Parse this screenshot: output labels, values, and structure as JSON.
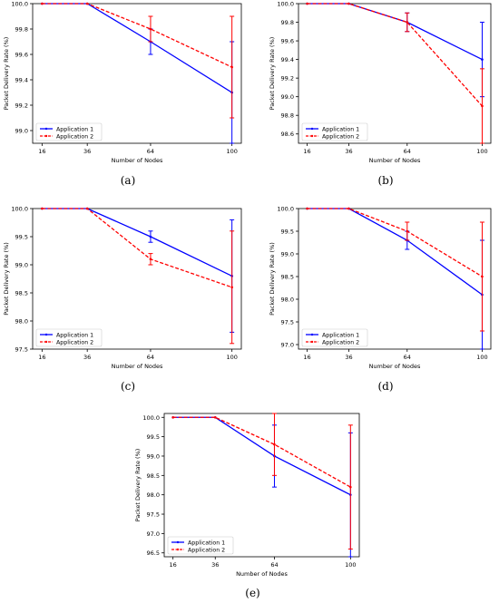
{
  "chart_data": [
    {
      "type": "line",
      "caption": "(a)",
      "xlabel": "Number of Nodes",
      "ylabel": "Packet Delivery Rate (%)",
      "categories": [
        "16",
        "36",
        "64",
        "100"
      ],
      "yticks": [
        "100.0",
        "99.8",
        "99.6",
        "99.4",
        "99.2",
        "99.0"
      ],
      "ylim": [
        98.9,
        100.0
      ],
      "grid": false,
      "legend": "bottom-left",
      "series": [
        {
          "name": "Application 1",
          "color": "#0000ff",
          "style": "solid",
          "values": [
            100.0,
            100.0,
            99.7,
            99.3
          ],
          "err_low": [
            100.0,
            100.0,
            99.6,
            98.9
          ],
          "err_high": [
            100.0,
            100.0,
            99.8,
            99.7
          ]
        },
        {
          "name": "Application 2",
          "color": "#ff0000",
          "style": "dashed",
          "values": [
            100.0,
            100.0,
            99.8,
            99.5
          ],
          "err_low": [
            100.0,
            100.0,
            99.7,
            99.1
          ],
          "err_high": [
            100.0,
            100.0,
            99.9,
            99.9
          ]
        }
      ]
    },
    {
      "type": "line",
      "caption": "(b)",
      "xlabel": "Number of Nodes",
      "ylabel": "Packet Delivery Rate (%)",
      "categories": [
        "16",
        "36",
        "64",
        "100"
      ],
      "yticks": [
        "100.0",
        "99.8",
        "99.6",
        "99.4",
        "99.2",
        "99.0",
        "98.8",
        "98.6"
      ],
      "ylim": [
        98.5,
        100.0
      ],
      "grid": false,
      "legend": "bottom-left",
      "series": [
        {
          "name": "Application 1",
          "color": "#0000ff",
          "style": "solid",
          "values": [
            100.0,
            100.0,
            99.8,
            99.4
          ],
          "err_low": [
            100.0,
            100.0,
            99.7,
            99.0
          ],
          "err_high": [
            100.0,
            100.0,
            99.9,
            99.8
          ]
        },
        {
          "name": "Application 2",
          "color": "#ff0000",
          "style": "dashed",
          "values": [
            100.0,
            100.0,
            99.8,
            98.9
          ],
          "err_low": [
            100.0,
            100.0,
            99.7,
            98.5
          ],
          "err_high": [
            100.0,
            100.0,
            99.9,
            99.3
          ]
        }
      ]
    },
    {
      "type": "line",
      "caption": "(c)",
      "xlabel": "Number of Nodes",
      "ylabel": "Packet Delivery Rate (%)",
      "categories": [
        "16",
        "36",
        "64",
        "100"
      ],
      "yticks": [
        "100.0",
        "99.5",
        "99.0",
        "98.5",
        "98.0",
        "97.5"
      ],
      "ylim": [
        97.5,
        100.0
      ],
      "grid": false,
      "legend": "bottom-left",
      "series": [
        {
          "name": "Application 1",
          "color": "#0000ff",
          "style": "solid",
          "values": [
            100.0,
            100.0,
            99.5,
            98.8
          ],
          "err_low": [
            100.0,
            100.0,
            99.4,
            97.8
          ],
          "err_high": [
            100.0,
            100.0,
            99.6,
            99.8
          ]
        },
        {
          "name": "Application 2",
          "color": "#ff0000",
          "style": "dashed",
          "values": [
            100.0,
            100.0,
            99.1,
            98.6
          ],
          "err_low": [
            100.0,
            100.0,
            99.0,
            97.6
          ],
          "err_high": [
            100.0,
            100.0,
            99.2,
            99.6
          ]
        }
      ]
    },
    {
      "type": "line",
      "caption": "(d)",
      "xlabel": "Number of Nodes",
      "ylabel": "Packet Delivery Rate (%)",
      "categories": [
        "16",
        "36",
        "64",
        "100"
      ],
      "yticks": [
        "100.0",
        "99.5",
        "99.0",
        "98.5",
        "98.0",
        "97.5",
        "97.0"
      ],
      "ylim": [
        96.9,
        100.0
      ],
      "grid": false,
      "legend": "bottom-left",
      "series": [
        {
          "name": "Application 1",
          "color": "#0000ff",
          "style": "solid",
          "values": [
            100.0,
            100.0,
            99.3,
            98.1
          ],
          "err_low": [
            100.0,
            100.0,
            99.1,
            96.9
          ],
          "err_high": [
            100.0,
            100.0,
            99.5,
            99.3
          ]
        },
        {
          "name": "Application 2",
          "color": "#ff0000",
          "style": "dashed",
          "values": [
            100.0,
            100.0,
            99.5,
            98.5
          ],
          "err_low": [
            100.0,
            100.0,
            99.3,
            97.3
          ],
          "err_high": [
            100.0,
            100.0,
            99.7,
            99.7
          ]
        }
      ]
    },
    {
      "type": "line",
      "caption": "(e)",
      "xlabel": "Number of Nodes",
      "ylabel": "Packet Delivery Rate (%)",
      "categories": [
        "16",
        "36",
        "64",
        "100"
      ],
      "yticks": [
        "100.0",
        "99.5",
        "99.0",
        "98.5",
        "98.0",
        "97.5",
        "97.0",
        "96.5"
      ],
      "ylim": [
        96.4,
        100.1
      ],
      "grid": false,
      "legend": "bottom-left",
      "series": [
        {
          "name": "Application 1",
          "color": "#0000ff",
          "style": "solid",
          "values": [
            100.0,
            100.0,
            99.0,
            98.0
          ],
          "err_low": [
            100.0,
            100.0,
            98.2,
            96.4
          ],
          "err_high": [
            100.0,
            100.0,
            99.8,
            99.6
          ]
        },
        {
          "name": "Application 2",
          "color": "#ff0000",
          "style": "dashed",
          "values": [
            100.0,
            100.0,
            99.3,
            98.2
          ],
          "err_low": [
            100.0,
            100.0,
            98.5,
            96.6
          ],
          "err_high": [
            100.0,
            100.0,
            100.1,
            99.8
          ]
        }
      ]
    }
  ]
}
